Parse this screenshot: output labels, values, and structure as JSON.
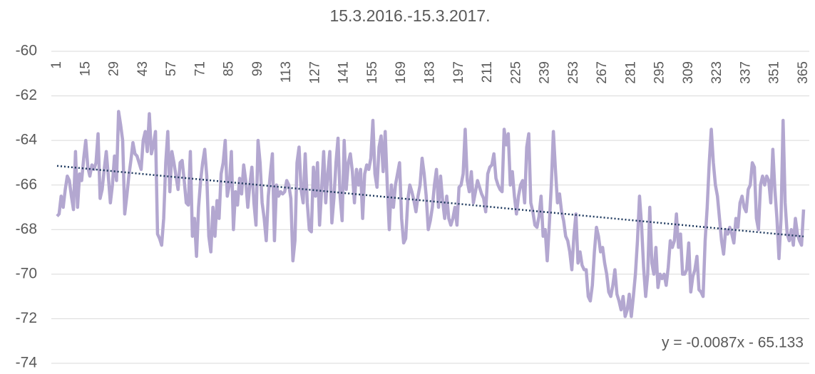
{
  "chart_data": {
    "type": "line",
    "title": "15.3.2016.-15.3.2017.",
    "x": [
      1,
      2,
      3,
      4,
      5,
      6,
      7,
      8,
      9,
      10,
      11,
      12,
      13,
      14,
      15,
      16,
      17,
      18,
      19,
      20,
      21,
      22,
      23,
      24,
      25,
      26,
      27,
      28,
      29,
      30,
      31,
      32,
      33,
      34,
      35,
      36,
      37,
      38,
      39,
      40,
      41,
      42,
      43,
      44,
      45,
      46,
      47,
      48,
      49,
      50,
      51,
      52,
      53,
      54,
      55,
      56,
      57,
      58,
      59,
      60,
      61,
      62,
      63,
      64,
      65,
      66,
      67,
      68,
      69,
      70,
      71,
      72,
      73,
      74,
      75,
      76,
      77,
      78,
      79,
      80,
      81,
      82,
      83,
      84,
      85,
      86,
      87,
      88,
      89,
      90,
      91,
      92,
      93,
      94,
      95,
      96,
      97,
      98,
      99,
      100,
      101,
      102,
      103,
      104,
      105,
      106,
      107,
      108,
      109,
      110,
      111,
      112,
      113,
      114,
      115,
      116,
      117,
      118,
      119,
      120,
      121,
      122,
      123,
      124,
      125,
      126,
      127,
      128,
      129,
      130,
      131,
      132,
      133,
      134,
      135,
      136,
      137,
      138,
      139,
      140,
      141,
      142,
      143,
      144,
      145,
      146,
      147,
      148,
      149,
      150,
      151,
      152,
      153,
      154,
      155,
      156,
      157,
      158,
      159,
      160,
      161,
      162,
      163,
      164,
      165,
      166,
      167,
      168,
      169,
      170,
      171,
      172,
      173,
      174,
      175,
      176,
      177,
      178,
      179,
      180,
      181,
      182,
      183,
      184,
      185,
      186,
      187,
      188,
      189,
      190,
      191,
      192,
      193,
      194,
      195,
      196,
      197,
      198,
      199,
      200,
      201,
      202,
      203,
      204,
      205,
      206,
      207,
      208,
      209,
      210,
      211,
      212,
      213,
      214,
      215,
      216,
      217,
      218,
      219,
      220,
      221,
      222,
      223,
      224,
      225,
      226,
      227,
      228,
      229,
      230,
      231,
      232,
      233,
      234,
      235,
      236,
      237,
      238,
      239,
      240,
      241,
      242,
      243,
      244,
      245,
      246,
      247,
      248,
      249,
      250,
      251,
      252,
      253,
      254,
      255,
      256,
      257,
      258,
      259,
      260,
      261,
      262,
      263,
      264,
      265,
      266,
      267,
      268,
      269,
      270,
      271,
      272,
      273,
      274,
      275,
      276,
      277,
      278,
      279,
      280,
      281,
      282,
      283,
      284,
      285,
      286,
      287,
      288,
      289,
      290,
      291,
      292,
      293,
      294,
      295,
      296,
      297,
      298,
      299,
      300,
      301,
      302,
      303,
      304,
      305,
      306,
      307,
      308,
      309,
      310,
      311,
      312,
      313,
      314,
      315,
      316,
      317,
      318,
      319,
      320,
      321,
      322,
      323,
      324,
      325,
      326,
      327,
      328,
      329,
      330,
      331,
      332,
      333,
      334,
      335,
      336,
      337,
      338,
      339,
      340,
      341,
      342,
      343,
      344,
      345,
      346,
      347,
      348,
      349,
      350,
      351,
      352,
      353,
      354,
      355,
      356,
      357,
      358,
      359,
      360,
      361,
      362,
      363,
      364,
      365
    ],
    "values": [
      -67.4,
      -67.3,
      -66.5,
      -67.0,
      -66.2,
      -65.6,
      -65.8,
      -66.5,
      -67.1,
      -64.5,
      -67.0,
      -65.5,
      -65.8,
      -64.8,
      -64.0,
      -65.2,
      -65.6,
      -65.1,
      -65.3,
      -65.0,
      -63.7,
      -66.6,
      -66.2,
      -65.3,
      -64.5,
      -65.6,
      -66.8,
      -66.0,
      -64.7,
      -65.8,
      -62.7,
      -63.3,
      -64.0,
      -67.3,
      -66.5,
      -65.6,
      -64.9,
      -64.1,
      -64.6,
      -64.7,
      -65.0,
      -65.3,
      -64.0,
      -63.6,
      -64.5,
      -62.8,
      -64.6,
      -64.2,
      -63.6,
      -68.2,
      -68.4,
      -68.7,
      -67.5,
      -65.0,
      -63.6,
      -66.3,
      -64.5,
      -65.0,
      -65.6,
      -66.2,
      -65.0,
      -64.9,
      -65.8,
      -66.8,
      -66.9,
      -64.5,
      -68.3,
      -67.5,
      -69.2,
      -67.0,
      -65.8,
      -65.0,
      -64.4,
      -65.6,
      -68.3,
      -69.0,
      -67.0,
      -68.3,
      -66.7,
      -67.5,
      -65.5,
      -65.0,
      -64.0,
      -66.5,
      -66.0,
      -64.5,
      -68.0,
      -66.3,
      -66.9,
      -65.7,
      -66.4,
      -65.1,
      -65.8,
      -67.0,
      -66.0,
      -65.2,
      -66.8,
      -67.8,
      -64.0,
      -65.0,
      -66.8,
      -67.5,
      -68.5,
      -66.5,
      -65.5,
      -64.6,
      -68.5,
      -66.0,
      -66.5,
      -66.3,
      -66.4,
      -66.3,
      -65.8,
      -66.0,
      -66.6,
      -69.4,
      -68.5,
      -65.0,
      -64.3,
      -66.2,
      -66.8,
      -64.6,
      -66.8,
      -68.0,
      -68.1,
      -65.2,
      -66.5,
      -65.0,
      -67.8,
      -66.2,
      -64.5,
      -66.8,
      -65.5,
      -64.5,
      -67.7,
      -66.6,
      -65.0,
      -63.9,
      -66.5,
      -67.6,
      -64.0,
      -66.2,
      -65.0,
      -64.6,
      -65.4,
      -66.8,
      -65.3,
      -66.0,
      -65.3,
      -67.5,
      -65.5,
      -65.1,
      -65.3,
      -64.8,
      -63.1,
      -65.5,
      -66.1,
      -64.3,
      -63.8,
      -65.4,
      -63.6,
      -66.0,
      -68.0,
      -66.0,
      -67.0,
      -66.0,
      -65.5,
      -65.0,
      -67.5,
      -68.6,
      -68.4,
      -66.7,
      -66.0,
      -66.3,
      -66.7,
      -67.2,
      -66.5,
      -66.0,
      -64.8,
      -65.5,
      -66.5,
      -68.0,
      -67.6,
      -67.0,
      -66.0,
      -65.3,
      -67.0,
      -65.6,
      -66.7,
      -67.5,
      -66.5,
      -67.5,
      -67.8,
      -67.5,
      -67.0,
      -67.8,
      -66.1,
      -66.0,
      -65.5,
      -63.5,
      -65.8,
      -66.3,
      -65.4,
      -66.8,
      -66.3,
      -65.8,
      -66.1,
      -66.4,
      -66.6,
      -67.2,
      -65.5,
      -65.2,
      -65.1,
      -64.6,
      -65.7,
      -66.0,
      -66.2,
      -66.3,
      -63.5,
      -64.2,
      -63.7,
      -66.0,
      -65.4,
      -66.5,
      -67.3,
      -66.5,
      -66.0,
      -65.8,
      -66.8,
      -64.3,
      -63.7,
      -66.8,
      -67.2,
      -67.8,
      -67.9,
      -67.4,
      -66.5,
      -68.3,
      -68.0,
      -69.4,
      -67.8,
      -66.0,
      -63.6,
      -65.3,
      -66.8,
      -66.4,
      -67.2,
      -67.6,
      -68.3,
      -68.5,
      -69.0,
      -69.8,
      -68.3,
      -67.3,
      -69.5,
      -69.0,
      -69.6,
      -69.8,
      -69.8,
      -71.0,
      -71.2,
      -70.5,
      -69.0,
      -67.9,
      -68.3,
      -69.0,
      -68.8,
      -69.5,
      -70.0,
      -70.8,
      -71.0,
      -70.5,
      -69.8,
      -70.9,
      -71.2,
      -71.6,
      -71.0,
      -71.9,
      -71.6,
      -70.9,
      -71.9,
      -71.0,
      -70.0,
      -68.5,
      -66.5,
      -67.8,
      -69.7,
      -71.0,
      -70.0,
      -67.0,
      -69.5,
      -70.0,
      -68.8,
      -70.6,
      -70.0,
      -70.2,
      -70.0,
      -70.5,
      -69.7,
      -68.5,
      -68.8,
      -68.5,
      -67.3,
      -68.8,
      -68.2,
      -70.0,
      -70.0,
      -69.8,
      -68.6,
      -70.8,
      -70.1,
      -69.8,
      -69.2,
      -70.7,
      -70.8,
      -71.0,
      -68.5,
      -67.0,
      -65.0,
      -63.5,
      -65.0,
      -66.0,
      -66.5,
      -67.5,
      -68.5,
      -69.1,
      -68.0,
      -68.2,
      -67.9,
      -68.2,
      -68.6,
      -67.5,
      -67.9,
      -66.8,
      -66.5,
      -67.0,
      -67.2,
      -66.2,
      -66.0,
      -65.0,
      -65.2,
      -67.5,
      -68.0,
      -66.0,
      -65.6,
      -66.0,
      -65.6,
      -65.8,
      -66.8,
      -64.4,
      -66.2,
      -67.5,
      -69.3,
      -67.5,
      -63.1,
      -66.8,
      -68.2,
      -68.5,
      -68.0,
      -68.7,
      -67.5,
      -68.2,
      -68.5,
      -68.7,
      -67.1
    ],
    "color": "#b3a7d0",
    "xlim": [
      1,
      365
    ],
    "xticks": [
      1,
      15,
      29,
      43,
      57,
      71,
      85,
      99,
      113,
      127,
      141,
      155,
      169,
      183,
      197,
      211,
      225,
      239,
      253,
      267,
      281,
      295,
      309,
      323,
      337,
      351,
      365
    ],
    "ylim": [
      -74,
      -60
    ],
    "yticks": [
      -74,
      -72,
      -70,
      -68,
      -66,
      -64,
      -62,
      -60
    ],
    "grid": true,
    "trendline": {
      "slope": -0.0087,
      "intercept": -65.133,
      "label": "y = -0.0087x - 65.133",
      "color": "#1f3a5f"
    }
  }
}
